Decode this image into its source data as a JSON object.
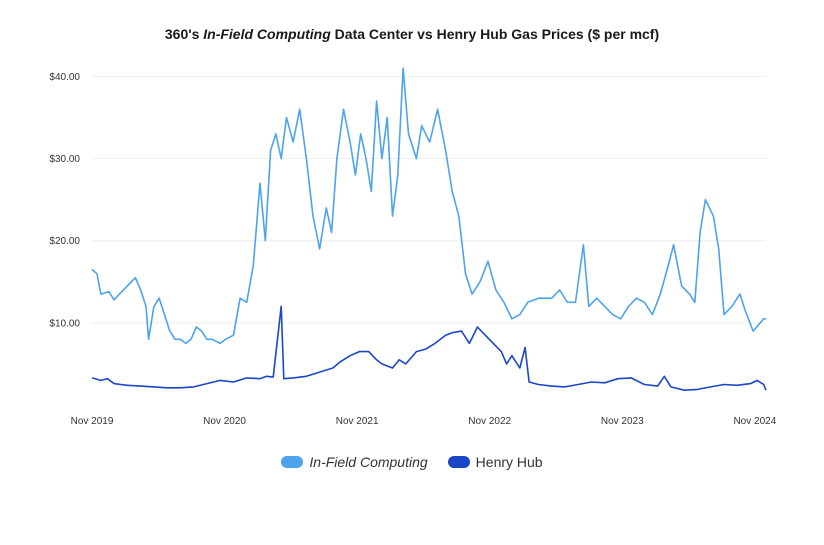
{
  "title": {
    "prefix": "360's ",
    "emphasis": "In-Field Computing",
    "suffix": " Data Center vs Henry Hub Gas Prices ($ per mcf)"
  },
  "colors": {
    "in_field": "#4da3ec",
    "henry_hub": "#1a47c7",
    "grid": "#eeeeee"
  },
  "chart_data": {
    "type": "line",
    "title": "360's In-Field Computing Data Center vs Henry Hub Gas Prices ($ per mcf)",
    "xlabel": "",
    "ylabel": "",
    "xlim": [
      2019.833,
      2024.917
    ],
    "ylim": [
      0,
      42
    ],
    "x_ticks": [
      {
        "x": 2019.833,
        "label": "Nov 2019"
      },
      {
        "x": 2020.833,
        "label": "Nov 2020"
      },
      {
        "x": 2021.833,
        "label": "Nov 2021"
      },
      {
        "x": 2022.833,
        "label": "Nov 2022"
      },
      {
        "x": 2023.833,
        "label": "Nov 2023"
      },
      {
        "x": 2024.833,
        "label": "Nov 2024"
      }
    ],
    "y_ticks": [
      {
        "y": 10,
        "label": "$10.00"
      },
      {
        "y": 20,
        "label": "$20.00"
      },
      {
        "y": 30,
        "label": "$30.00"
      },
      {
        "y": 40,
        "label": "$40.00"
      }
    ],
    "grid": true,
    "legend_position": "bottom-center",
    "series": [
      {
        "name": "In-Field Computing",
        "points": [
          [
            2019.833,
            16.5
          ],
          [
            2019.87,
            16
          ],
          [
            2019.9,
            13.5
          ],
          [
            2019.96,
            13.8
          ],
          [
            2020.0,
            12.8
          ],
          [
            2020.04,
            13.5
          ],
          [
            2020.1,
            14.5
          ],
          [
            2020.16,
            15.5
          ],
          [
            2020.2,
            14
          ],
          [
            2020.24,
            12
          ],
          [
            2020.26,
            8
          ],
          [
            2020.3,
            12
          ],
          [
            2020.34,
            13
          ],
          [
            2020.38,
            11
          ],
          [
            2020.42,
            9
          ],
          [
            2020.46,
            8
          ],
          [
            2020.5,
            8
          ],
          [
            2020.54,
            7.5
          ],
          [
            2020.58,
            8
          ],
          [
            2020.62,
            9.5
          ],
          [
            2020.66,
            9
          ],
          [
            2020.7,
            8
          ],
          [
            2020.74,
            8
          ],
          [
            2020.8,
            7.5
          ],
          [
            2020.84,
            8
          ],
          [
            2020.9,
            8.5
          ],
          [
            2020.95,
            13
          ],
          [
            2021.0,
            12.5
          ],
          [
            2021.05,
            17
          ],
          [
            2021.1,
            27
          ],
          [
            2021.14,
            20
          ],
          [
            2021.18,
            31
          ],
          [
            2021.22,
            33
          ],
          [
            2021.26,
            30
          ],
          [
            2021.3,
            35
          ],
          [
            2021.35,
            32
          ],
          [
            2021.4,
            36
          ],
          [
            2021.45,
            30
          ],
          [
            2021.5,
            23
          ],
          [
            2021.55,
            19
          ],
          [
            2021.6,
            24
          ],
          [
            2021.64,
            21
          ],
          [
            2021.68,
            30
          ],
          [
            2021.73,
            36
          ],
          [
            2021.78,
            32
          ],
          [
            2021.82,
            28
          ],
          [
            2021.86,
            33
          ],
          [
            2021.9,
            30
          ],
          [
            2021.94,
            26
          ],
          [
            2021.98,
            37
          ],
          [
            2022.02,
            30
          ],
          [
            2022.06,
            35
          ],
          [
            2022.1,
            23
          ],
          [
            2022.14,
            28
          ],
          [
            2022.18,
            41
          ],
          [
            2022.22,
            33
          ],
          [
            2022.28,
            30
          ],
          [
            2022.32,
            34
          ],
          [
            2022.38,
            32
          ],
          [
            2022.44,
            36
          ],
          [
            2022.5,
            31
          ],
          [
            2022.55,
            26
          ],
          [
            2022.6,
            23
          ],
          [
            2022.65,
            16
          ],
          [
            2022.7,
            13.5
          ],
          [
            2022.76,
            15
          ],
          [
            2022.82,
            17.5
          ],
          [
            2022.88,
            14
          ],
          [
            2022.94,
            12.5
          ],
          [
            2023.0,
            10.5
          ],
          [
            2023.06,
            11
          ],
          [
            2023.12,
            12.5
          ],
          [
            2023.2,
            13
          ],
          [
            2023.3,
            13
          ],
          [
            2023.36,
            14
          ],
          [
            2023.42,
            12.5
          ],
          [
            2023.48,
            12.5
          ],
          [
            2023.54,
            19.5
          ],
          [
            2023.58,
            12
          ],
          [
            2023.64,
            13
          ],
          [
            2023.7,
            12
          ],
          [
            2023.76,
            11
          ],
          [
            2023.82,
            10.5
          ],
          [
            2023.88,
            12
          ],
          [
            2023.94,
            13
          ],
          [
            2024.0,
            12.5
          ],
          [
            2024.06,
            11
          ],
          [
            2024.12,
            13.5
          ],
          [
            2024.18,
            17
          ],
          [
            2024.22,
            19.5
          ],
          [
            2024.28,
            14.5
          ],
          [
            2024.34,
            13.5
          ],
          [
            2024.38,
            12.5
          ],
          [
            2024.42,
            21
          ],
          [
            2024.46,
            25
          ],
          [
            2024.52,
            23
          ],
          [
            2024.56,
            19
          ],
          [
            2024.6,
            11
          ],
          [
            2024.66,
            12
          ],
          [
            2024.72,
            13.5
          ],
          [
            2024.76,
            11.5
          ],
          [
            2024.82,
            9
          ],
          [
            2024.9,
            10.5
          ],
          [
            2024.917,
            10.5
          ]
        ]
      },
      {
        "name": "Henry Hub",
        "points": [
          [
            2019.833,
            3.3
          ],
          [
            2019.9,
            3
          ],
          [
            2019.95,
            3.2
          ],
          [
            2020.0,
            2.6
          ],
          [
            2020.05,
            2.5
          ],
          [
            2020.1,
            2.4
          ],
          [
            2020.2,
            2.3
          ],
          [
            2020.3,
            2.2
          ],
          [
            2020.4,
            2.1
          ],
          [
            2020.5,
            2.1
          ],
          [
            2020.6,
            2.2
          ],
          [
            2020.7,
            2.6
          ],
          [
            2020.8,
            3
          ],
          [
            2020.9,
            2.8
          ],
          [
            2021.0,
            3.3
          ],
          [
            2021.1,
            3.2
          ],
          [
            2021.15,
            3.5
          ],
          [
            2021.2,
            3.4
          ],
          [
            2021.26,
            12
          ],
          [
            2021.28,
            3.2
          ],
          [
            2021.35,
            3.3
          ],
          [
            2021.45,
            3.5
          ],
          [
            2021.55,
            4
          ],
          [
            2021.65,
            4.5
          ],
          [
            2021.7,
            5.2
          ],
          [
            2021.78,
            6
          ],
          [
            2021.85,
            6.5
          ],
          [
            2021.92,
            6.5
          ],
          [
            2021.98,
            5.5
          ],
          [
            2022.02,
            5
          ],
          [
            2022.1,
            4.5
          ],
          [
            2022.15,
            5.5
          ],
          [
            2022.2,
            5
          ],
          [
            2022.28,
            6.5
          ],
          [
            2022.35,
            6.8
          ],
          [
            2022.42,
            7.5
          ],
          [
            2022.5,
            8.5
          ],
          [
            2022.55,
            8.8
          ],
          [
            2022.62,
            9
          ],
          [
            2022.68,
            7.5
          ],
          [
            2022.74,
            9.5
          ],
          [
            2022.8,
            8.5
          ],
          [
            2022.86,
            7.5
          ],
          [
            2022.92,
            6.5
          ],
          [
            2022.96,
            5
          ],
          [
            2023.0,
            6
          ],
          [
            2023.06,
            4.5
          ],
          [
            2023.1,
            7
          ],
          [
            2023.13,
            2.8
          ],
          [
            2023.2,
            2.5
          ],
          [
            2023.3,
            2.3
          ],
          [
            2023.4,
            2.2
          ],
          [
            2023.5,
            2.5
          ],
          [
            2023.6,
            2.8
          ],
          [
            2023.7,
            2.7
          ],
          [
            2023.8,
            3.2
          ],
          [
            2023.9,
            3.3
          ],
          [
            2024.0,
            2.5
          ],
          [
            2024.1,
            2.3
          ],
          [
            2024.15,
            3.5
          ],
          [
            2024.2,
            2.2
          ],
          [
            2024.3,
            1.8
          ],
          [
            2024.4,
            1.9
          ],
          [
            2024.5,
            2.2
          ],
          [
            2024.6,
            2.5
          ],
          [
            2024.7,
            2.4
          ],
          [
            2024.8,
            2.6
          ],
          [
            2024.85,
            3
          ],
          [
            2024.9,
            2.5
          ],
          [
            2024.917,
            1.8
          ]
        ]
      }
    ]
  },
  "legend": [
    {
      "label": "In-Field Computing",
      "italic": true
    },
    {
      "label": "Henry Hub",
      "italic": false
    }
  ]
}
